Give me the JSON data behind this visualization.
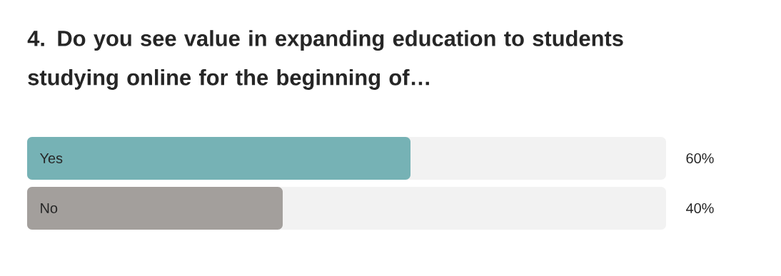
{
  "chart_data": {
    "type": "bar",
    "orientation": "horizontal",
    "title": "4. Do you see value in expanding education to students studying online for the beginning of…",
    "categories": [
      "Yes",
      "No"
    ],
    "values": [
      60,
      40
    ],
    "colors": [
      "#76b2b5",
      "#a39f9c"
    ],
    "value_labels": [
      "60%",
      "40%"
    ],
    "xlim": [
      0,
      100
    ],
    "tick_labels": "y"
  }
}
